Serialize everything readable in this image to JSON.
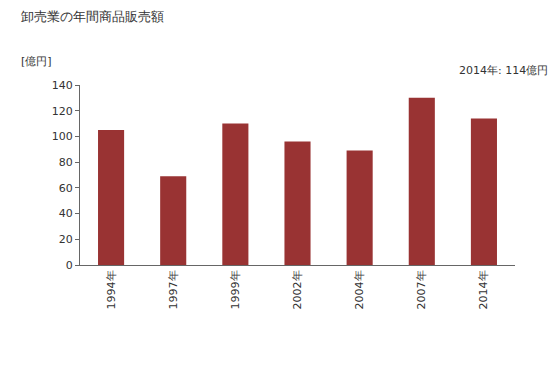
{
  "chart_data": {
    "type": "bar",
    "title": "卸売業の年間商品販売額",
    "y_axis_label": "[億円]",
    "annotations": [
      "2014年: 114億円"
    ],
    "categories": [
      "1994年",
      "1997年",
      "1999年",
      "2002年",
      "2004年",
      "2007年",
      "2014年"
    ],
    "values": [
      105,
      69,
      110,
      96,
      89,
      130,
      114
    ],
    "color": "#993333",
    "ylim": [
      0,
      140
    ],
    "yticks": [
      0,
      20,
      40,
      60,
      80,
      100,
      120,
      140
    ],
    "grid": false
  }
}
